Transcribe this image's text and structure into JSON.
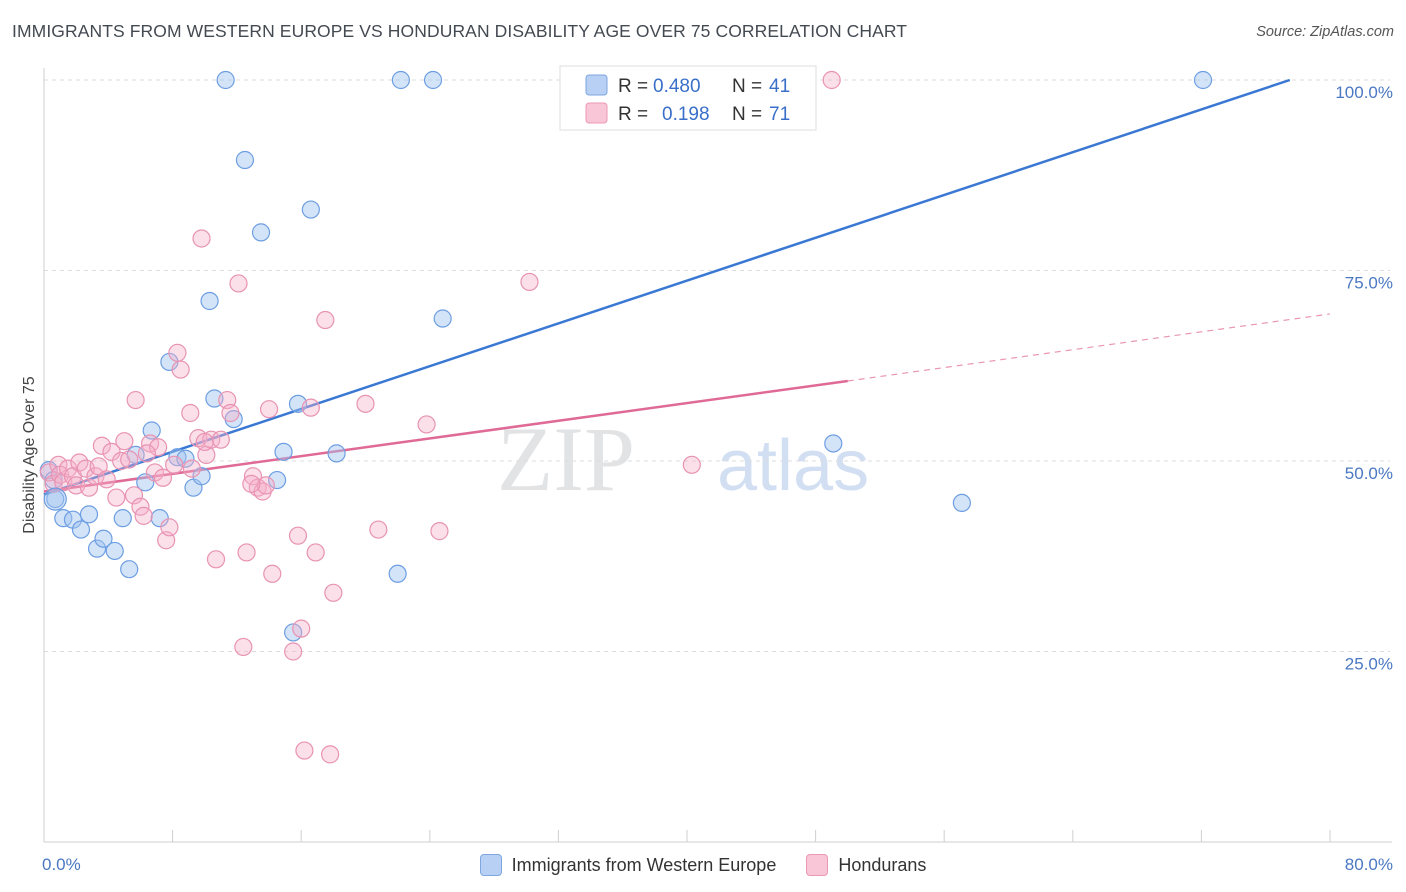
{
  "title": "IMMIGRANTS FROM WESTERN EUROPE VS HONDURAN DISABILITY AGE OVER 75 CORRELATION CHART",
  "source": "Source: ZipAtlas.com",
  "watermark": {
    "zip": "ZIP",
    "atlas": "atlas"
  },
  "chart_data": {
    "type": "scatter",
    "ylabel": "Disability Age Over 75",
    "xlim": [
      0,
      80
    ],
    "ylim": [
      0,
      105
    ],
    "x_tick_labels": [
      "0.0%",
      "80.0%"
    ],
    "y_ticks": [
      25,
      50,
      75,
      100
    ],
    "y_tick_labels": [
      "25.0%",
      "50.0%",
      "75.0%",
      "100.0%"
    ],
    "grid": true,
    "legend_position": "top-center",
    "colors": {
      "blue": "#3a78d4",
      "pink": "#e06a96"
    },
    "series": [
      {
        "name": "Immigrants from Western Europe",
        "color": "#3a78d4",
        "r_label": "R =",
        "r_value": "0.480",
        "n_label": "N =",
        "n_value": "41",
        "trend": {
          "x0": 0,
          "y0": 45.6,
          "x1": 77.5,
          "y1": 100,
          "dashed_to": null
        },
        "points": [
          [
            0.3,
            48.8
          ],
          [
            0.6,
            47.5
          ],
          [
            0.7,
            45.0
          ],
          [
            1.2,
            42.5
          ],
          [
            1.8,
            42.3
          ],
          [
            2.3,
            41.0
          ],
          [
            2.8,
            43.0
          ],
          [
            3.3,
            38.5
          ],
          [
            3.7,
            39.8
          ],
          [
            4.4,
            38.2
          ],
          [
            4.9,
            42.5
          ],
          [
            5.3,
            35.8
          ],
          [
            5.7,
            50.8
          ],
          [
            6.3,
            47.2
          ],
          [
            6.7,
            54.0
          ],
          [
            7.2,
            42.5
          ],
          [
            7.8,
            63.0
          ],
          [
            8.3,
            50.5
          ],
          [
            8.8,
            50.3
          ],
          [
            9.3,
            46.5
          ],
          [
            9.8,
            48.0
          ],
          [
            10.3,
            71.0
          ],
          [
            10.6,
            58.2
          ],
          [
            11.3,
            100.0
          ],
          [
            11.8,
            55.5
          ],
          [
            12.5,
            89.5
          ],
          [
            13.5,
            80.0
          ],
          [
            14.5,
            47.5
          ],
          [
            14.9,
            51.2
          ],
          [
            15.5,
            27.5
          ],
          [
            15.8,
            57.5
          ],
          [
            16.6,
            83.0
          ],
          [
            18.2,
            51.0
          ],
          [
            22.0,
            35.2
          ],
          [
            22.2,
            100.0
          ],
          [
            24.2,
            100.0
          ],
          [
            24.8,
            68.7
          ],
          [
            33.0,
            100.0
          ],
          [
            49.1,
            52.3
          ],
          [
            57.1,
            44.5
          ],
          [
            72.1,
            100.0
          ]
        ]
      },
      {
        "name": "Hondurans",
        "color": "#e06a96",
        "r_label": "R =",
        "r_value": "0.198",
        "n_label": "N =",
        "n_value": "71",
        "trend": {
          "x0": 0,
          "y0": 46.0,
          "x1": 50.0,
          "y1": 60.5,
          "dashed_to": {
            "x": 80,
            "y": 69.3
          }
        },
        "points": [
          [
            0.3,
            48.5
          ],
          [
            0.6,
            47.0
          ],
          [
            0.9,
            49.5
          ],
          [
            1.0,
            48.2
          ],
          [
            1.2,
            47.2
          ],
          [
            1.5,
            49.0
          ],
          [
            1.8,
            48.0
          ],
          [
            2.0,
            46.8
          ],
          [
            2.2,
            49.8
          ],
          [
            2.6,
            49.0
          ],
          [
            2.8,
            46.5
          ],
          [
            3.2,
            48.0
          ],
          [
            3.4,
            49.3
          ],
          [
            3.6,
            52.0
          ],
          [
            3.9,
            47.6
          ],
          [
            4.2,
            51.2
          ],
          [
            4.5,
            45.2
          ],
          [
            4.8,
            50.0
          ],
          [
            5.0,
            52.6
          ],
          [
            5.3,
            50.2
          ],
          [
            5.6,
            45.5
          ],
          [
            5.7,
            58.0
          ],
          [
            6.0,
            44.0
          ],
          [
            6.2,
            42.8
          ],
          [
            6.6,
            52.3
          ],
          [
            6.9,
            48.5
          ],
          [
            7.1,
            51.8
          ],
          [
            7.4,
            47.8
          ],
          [
            7.6,
            39.6
          ],
          [
            7.8,
            41.3
          ],
          [
            8.1,
            49.5
          ],
          [
            8.3,
            64.2
          ],
          [
            8.5,
            62.0
          ],
          [
            9.1,
            56.3
          ],
          [
            9.6,
            53.0
          ],
          [
            9.8,
            79.2
          ],
          [
            10.1,
            50.8
          ],
          [
            10.4,
            52.8
          ],
          [
            10.7,
            37.1
          ],
          [
            11.0,
            52.8
          ],
          [
            11.4,
            58.0
          ],
          [
            11.6,
            56.3
          ],
          [
            12.1,
            73.3
          ],
          [
            12.4,
            25.6
          ],
          [
            12.6,
            38.0
          ],
          [
            13.0,
            48.0
          ],
          [
            13.3,
            46.5
          ],
          [
            13.6,
            46.0
          ],
          [
            14.0,
            56.8
          ],
          [
            14.2,
            35.2
          ],
          [
            15.5,
            25.0
          ],
          [
            15.8,
            40.2
          ],
          [
            16.0,
            28.0
          ],
          [
            16.2,
            12.0
          ],
          [
            16.9,
            38.0
          ],
          [
            16.6,
            57.0
          ],
          [
            17.5,
            68.5
          ],
          [
            17.8,
            11.5
          ],
          [
            18.0,
            32.7
          ],
          [
            20.0,
            57.5
          ],
          [
            20.8,
            41.0
          ],
          [
            23.8,
            54.8
          ],
          [
            24.6,
            40.8
          ],
          [
            30.2,
            73.5
          ],
          [
            40.3,
            49.5
          ],
          [
            49.0,
            100.0
          ],
          [
            13.8,
            46.8
          ],
          [
            10.0,
            52.5
          ],
          [
            9.2,
            49.0
          ],
          [
            12.9,
            47.0
          ],
          [
            6.4,
            51.0
          ]
        ]
      }
    ]
  }
}
